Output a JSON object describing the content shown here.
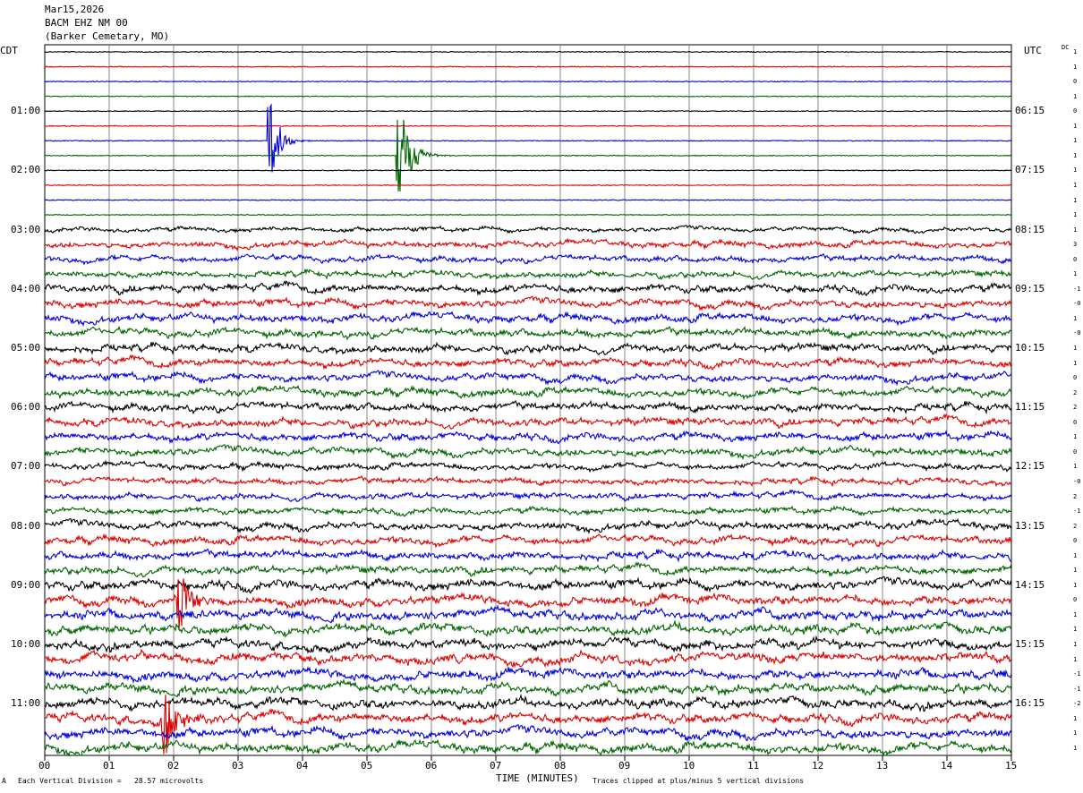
{
  "header": {
    "date": "Mar15,2026",
    "station": "BACM EHZ NM 00",
    "location": "(Barker Cemetary, MO)"
  },
  "left_timezone": "CDT",
  "right_timezone": "UTC",
  "dc_label": "DC",
  "footer": {
    "scale_note": "Each Vertical Division =   28.57 microvolts",
    "xlabel": "TIME (MINUTES)",
    "clip_note": "Traces clipped at plus/minus 5 vertical divisions",
    "corner_mark": "A"
  },
  "colors": {
    "cycle": [
      "#000000",
      "#dd0000",
      "#0000dd",
      "#006400"
    ],
    "grid": "#8a8a8a"
  },
  "chart_data": {
    "type": "line",
    "title": "",
    "xlabel": "TIME (MINUTES)",
    "xlim": [
      0,
      15
    ],
    "x_ticks": [
      "00",
      "01",
      "02",
      "03",
      "04",
      "05",
      "06",
      "07",
      "08",
      "09",
      "10",
      "11",
      "12",
      "13",
      "14",
      "15"
    ],
    "left_hour_labels": [
      "01:00",
      "02:00",
      "03:00",
      "04:00",
      "05:00",
      "06:00",
      "07:00",
      "08:00",
      "09:00",
      "10:00",
      "11:00"
    ],
    "right_hour_labels": [
      "06:15",
      "07:15",
      "08:15",
      "09:15",
      "10:15",
      "11:15",
      "12:15",
      "13:15",
      "14:15",
      "15:15",
      "16:15"
    ],
    "trace_count": 48,
    "traces_per_hour": 4,
    "first_labeled_trace": 4,
    "dc_offsets": [
      "1",
      "1",
      "0",
      "1",
      "0",
      "1",
      "1",
      "1",
      "1",
      "1",
      "1",
      "1",
      "1",
      "3",
      "0",
      "1",
      "-1",
      "-0",
      "1",
      "-0",
      "1",
      "1",
      "0",
      "2",
      "2",
      "0",
      "1",
      "0",
      "1",
      "-0",
      "2",
      "-1",
      "2",
      "0",
      "1",
      "1",
      "1",
      "0",
      "1",
      "1",
      "1",
      "1",
      "-1",
      "-1",
      "-2",
      "1",
      "1",
      "1"
    ],
    "amplitude_profile": [
      1,
      1,
      1,
      1,
      1,
      1,
      1,
      1,
      1,
      1,
      1,
      1,
      3,
      4,
      4,
      4,
      5,
      5,
      5,
      5,
      5,
      5,
      5,
      5,
      5,
      5,
      5,
      5,
      4,
      4,
      4,
      4,
      5,
      5,
      5,
      5,
      6,
      6,
      6,
      6,
      6,
      6,
      6,
      6,
      6,
      6,
      6,
      6
    ],
    "events": [
      {
        "trace": 6,
        "minute": 3.5,
        "duration_min": 0.35,
        "peak_divisions": 7
      },
      {
        "trace": 7,
        "minute": 5.5,
        "duration_min": 0.45,
        "peak_divisions": 8
      },
      {
        "trace": 37,
        "minute": 2.1,
        "duration_min": 0.4,
        "peak_divisions": 5
      },
      {
        "trace": 45,
        "minute": 1.85,
        "duration_min": 0.45,
        "peak_divisions": 6
      }
    ],
    "grid": true
  }
}
